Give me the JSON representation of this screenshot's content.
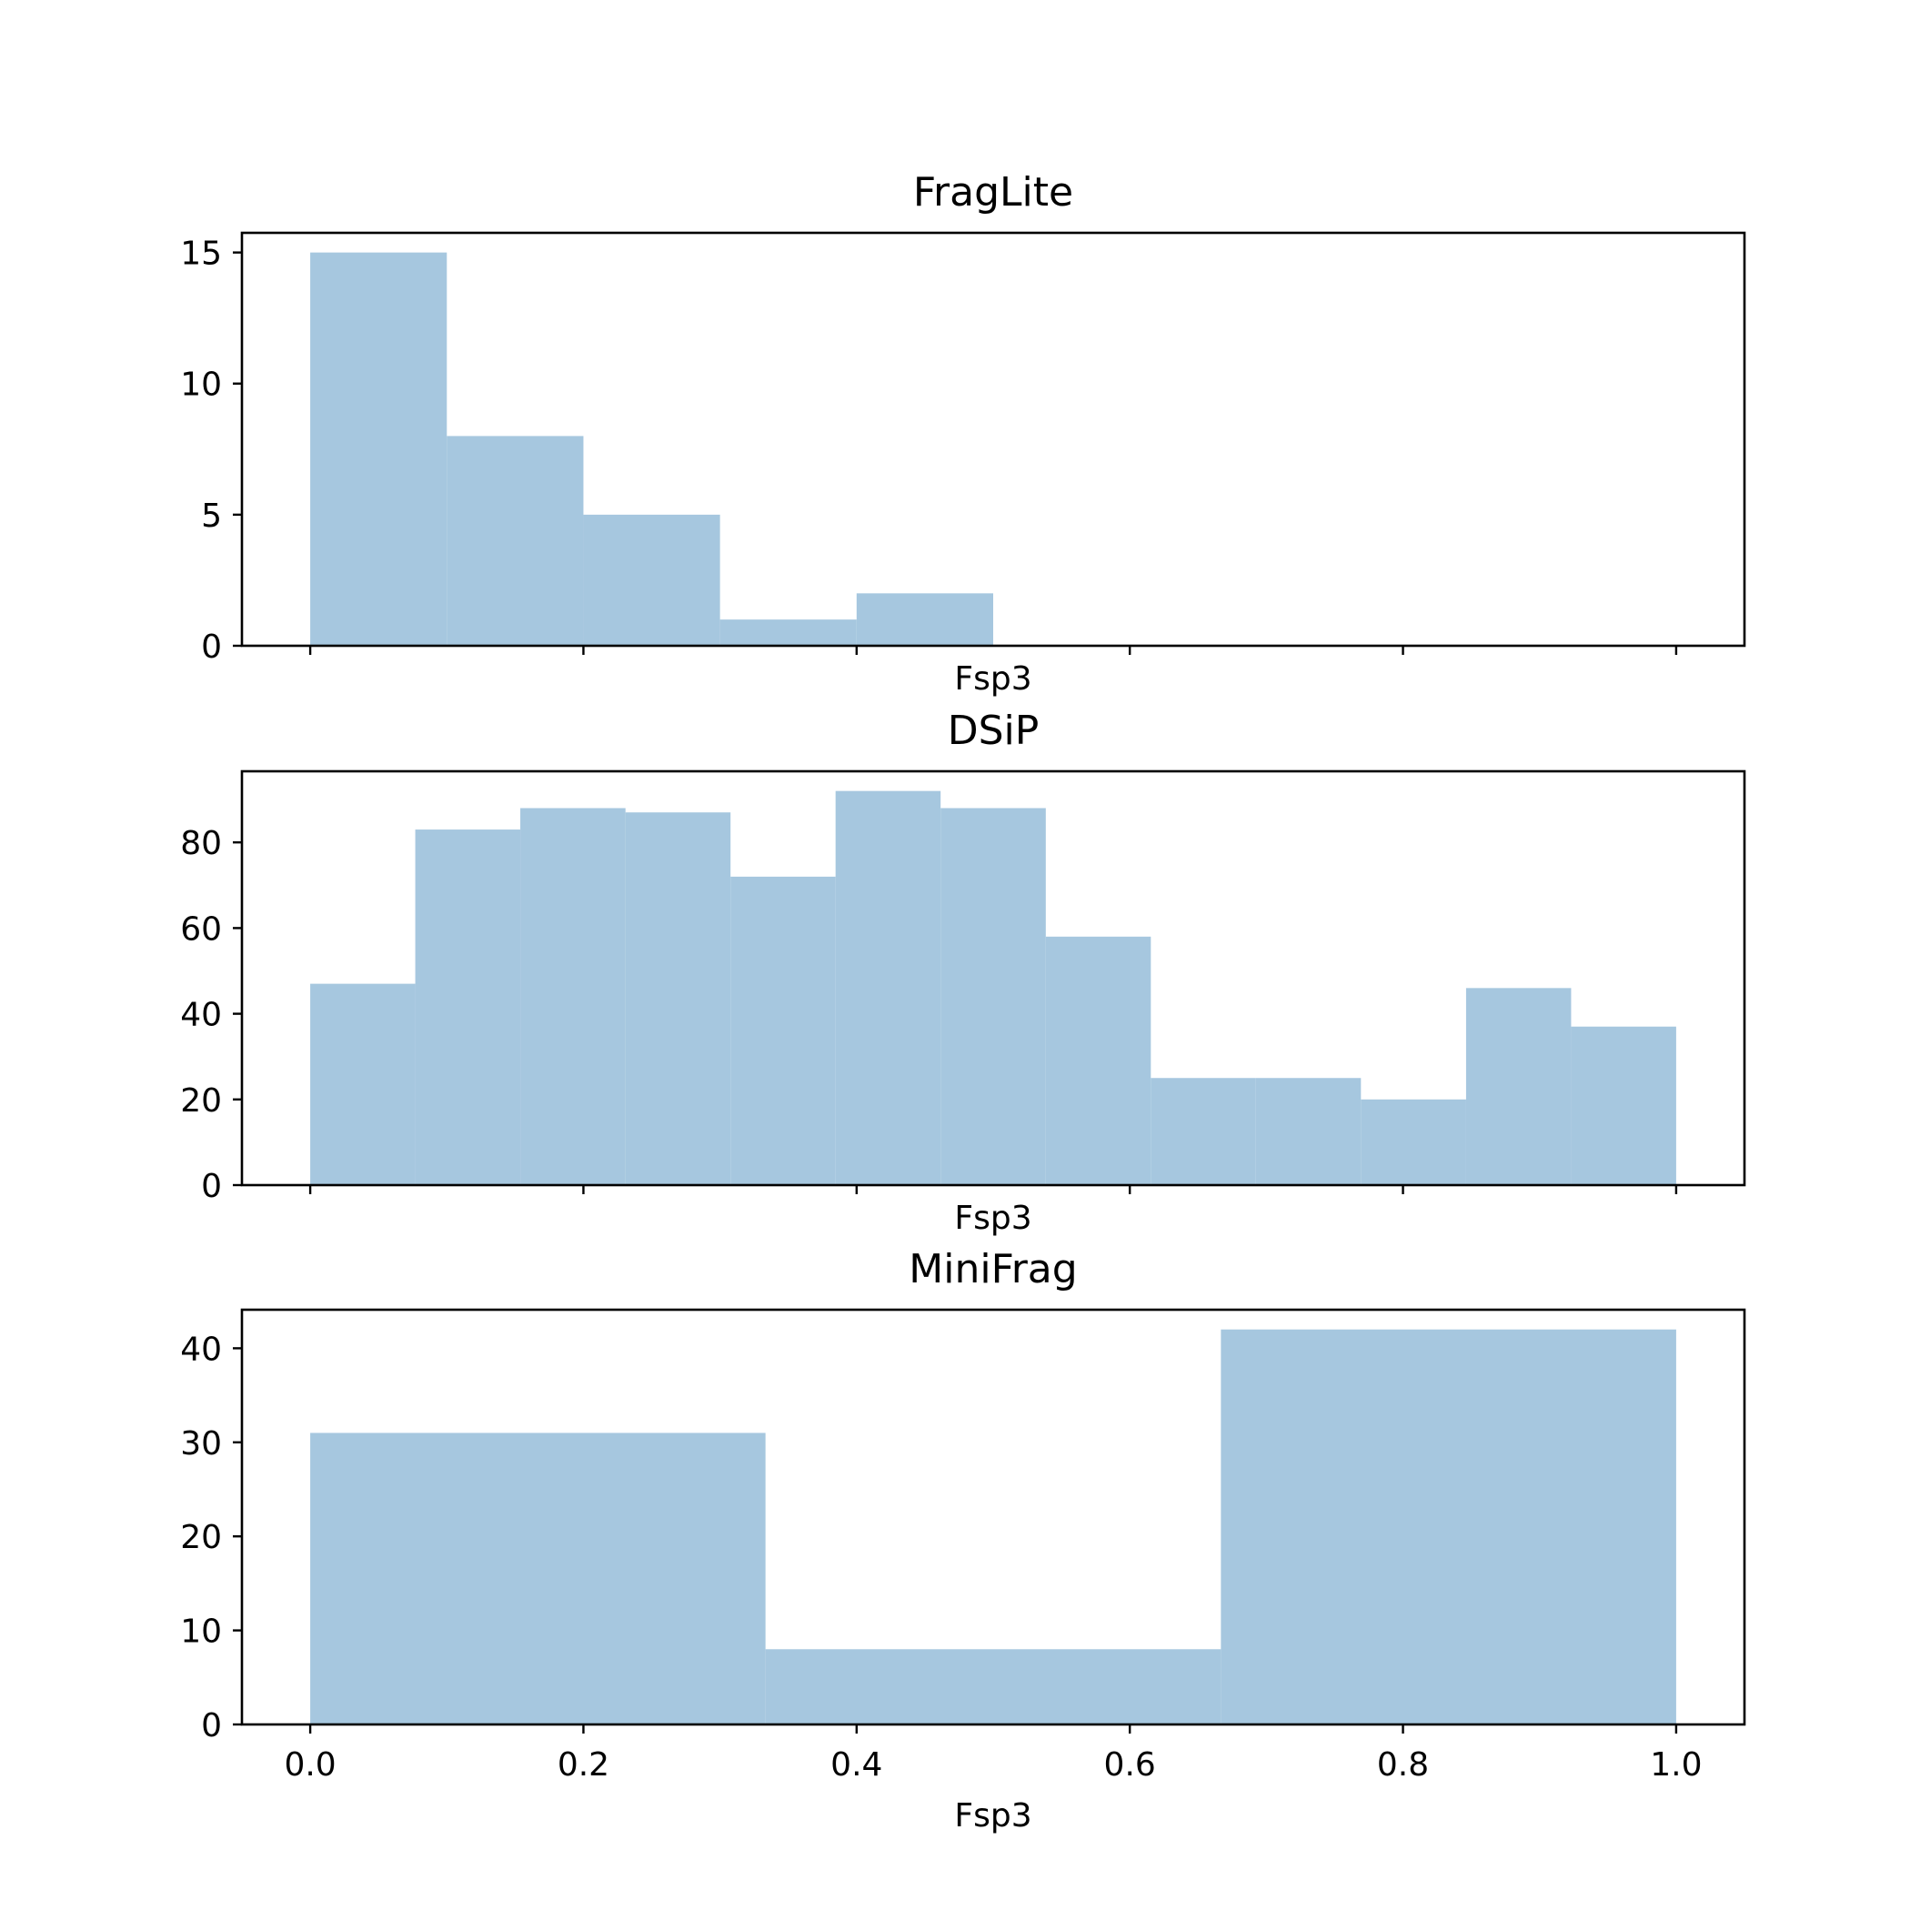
{
  "colors": {
    "bar": "#a6c7df",
    "axis": "#000000",
    "background": "#ffffff"
  },
  "chart_data": [
    {
      "type": "bar",
      "title": "FragLite",
      "xlabel": "Fsp3",
      "ylabel": "",
      "xlim": [
        -0.05,
        1.05
      ],
      "ylim": [
        0,
        15.75
      ],
      "grid": false,
      "x_ticks": [
        0.0,
        0.2,
        0.4,
        0.6,
        0.8,
        1.0
      ],
      "x_tick_labels_shown": false,
      "y_ticks": [
        0,
        5,
        10,
        15
      ],
      "bins": [
        {
          "x0": 0.0,
          "x1": 0.1,
          "value": 15
        },
        {
          "x0": 0.1,
          "x1": 0.2,
          "value": 8
        },
        {
          "x0": 0.2,
          "x1": 0.3,
          "value": 5
        },
        {
          "x0": 0.3,
          "x1": 0.4,
          "value": 1
        },
        {
          "x0": 0.4,
          "x1": 0.5,
          "value": 2
        }
      ]
    },
    {
      "type": "bar",
      "title": "DSiP",
      "xlabel": "Fsp3",
      "ylabel": "",
      "xlim": [
        -0.05,
        1.05
      ],
      "ylim": [
        0,
        96.6
      ],
      "grid": false,
      "x_ticks": [
        0.0,
        0.2,
        0.4,
        0.6,
        0.8,
        1.0
      ],
      "x_tick_labels_shown": false,
      "y_ticks": [
        0,
        20,
        40,
        60,
        80
      ],
      "bins": [
        {
          "x0": 0.0,
          "x1": 0.0769,
          "value": 47
        },
        {
          "x0": 0.0769,
          "x1": 0.1538,
          "value": 83
        },
        {
          "x0": 0.1538,
          "x1": 0.2308,
          "value": 88
        },
        {
          "x0": 0.2308,
          "x1": 0.3077,
          "value": 87
        },
        {
          "x0": 0.3077,
          "x1": 0.3846,
          "value": 72
        },
        {
          "x0": 0.3846,
          "x1": 0.4615,
          "value": 92
        },
        {
          "x0": 0.4615,
          "x1": 0.5385,
          "value": 88
        },
        {
          "x0": 0.5385,
          "x1": 0.6154,
          "value": 58
        },
        {
          "x0": 0.6154,
          "x1": 0.6923,
          "value": 25
        },
        {
          "x0": 0.6923,
          "x1": 0.7692,
          "value": 25
        },
        {
          "x0": 0.7692,
          "x1": 0.8462,
          "value": 20
        },
        {
          "x0": 0.8462,
          "x1": 0.9231,
          "value": 46
        },
        {
          "x0": 0.9231,
          "x1": 1.0,
          "value": 37
        }
      ]
    },
    {
      "type": "bar",
      "title": "MiniFrag",
      "xlabel": "Fsp3",
      "ylabel": "",
      "xlim": [
        -0.05,
        1.05
      ],
      "ylim": [
        0,
        44.1
      ],
      "grid": false,
      "x_ticks": [
        0.0,
        0.2,
        0.4,
        0.6,
        0.8,
        1.0
      ],
      "x_tick_labels": [
        "0.0",
        "0.2",
        "0.4",
        "0.6",
        "0.8",
        "1.0"
      ],
      "x_tick_labels_shown": true,
      "y_ticks": [
        0,
        10,
        20,
        30,
        40
      ],
      "bins": [
        {
          "x0": 0.0,
          "x1": 0.3333,
          "value": 31
        },
        {
          "x0": 0.3333,
          "x1": 0.6667,
          "value": 8
        },
        {
          "x0": 0.6667,
          "x1": 1.0,
          "value": 42
        }
      ]
    }
  ]
}
